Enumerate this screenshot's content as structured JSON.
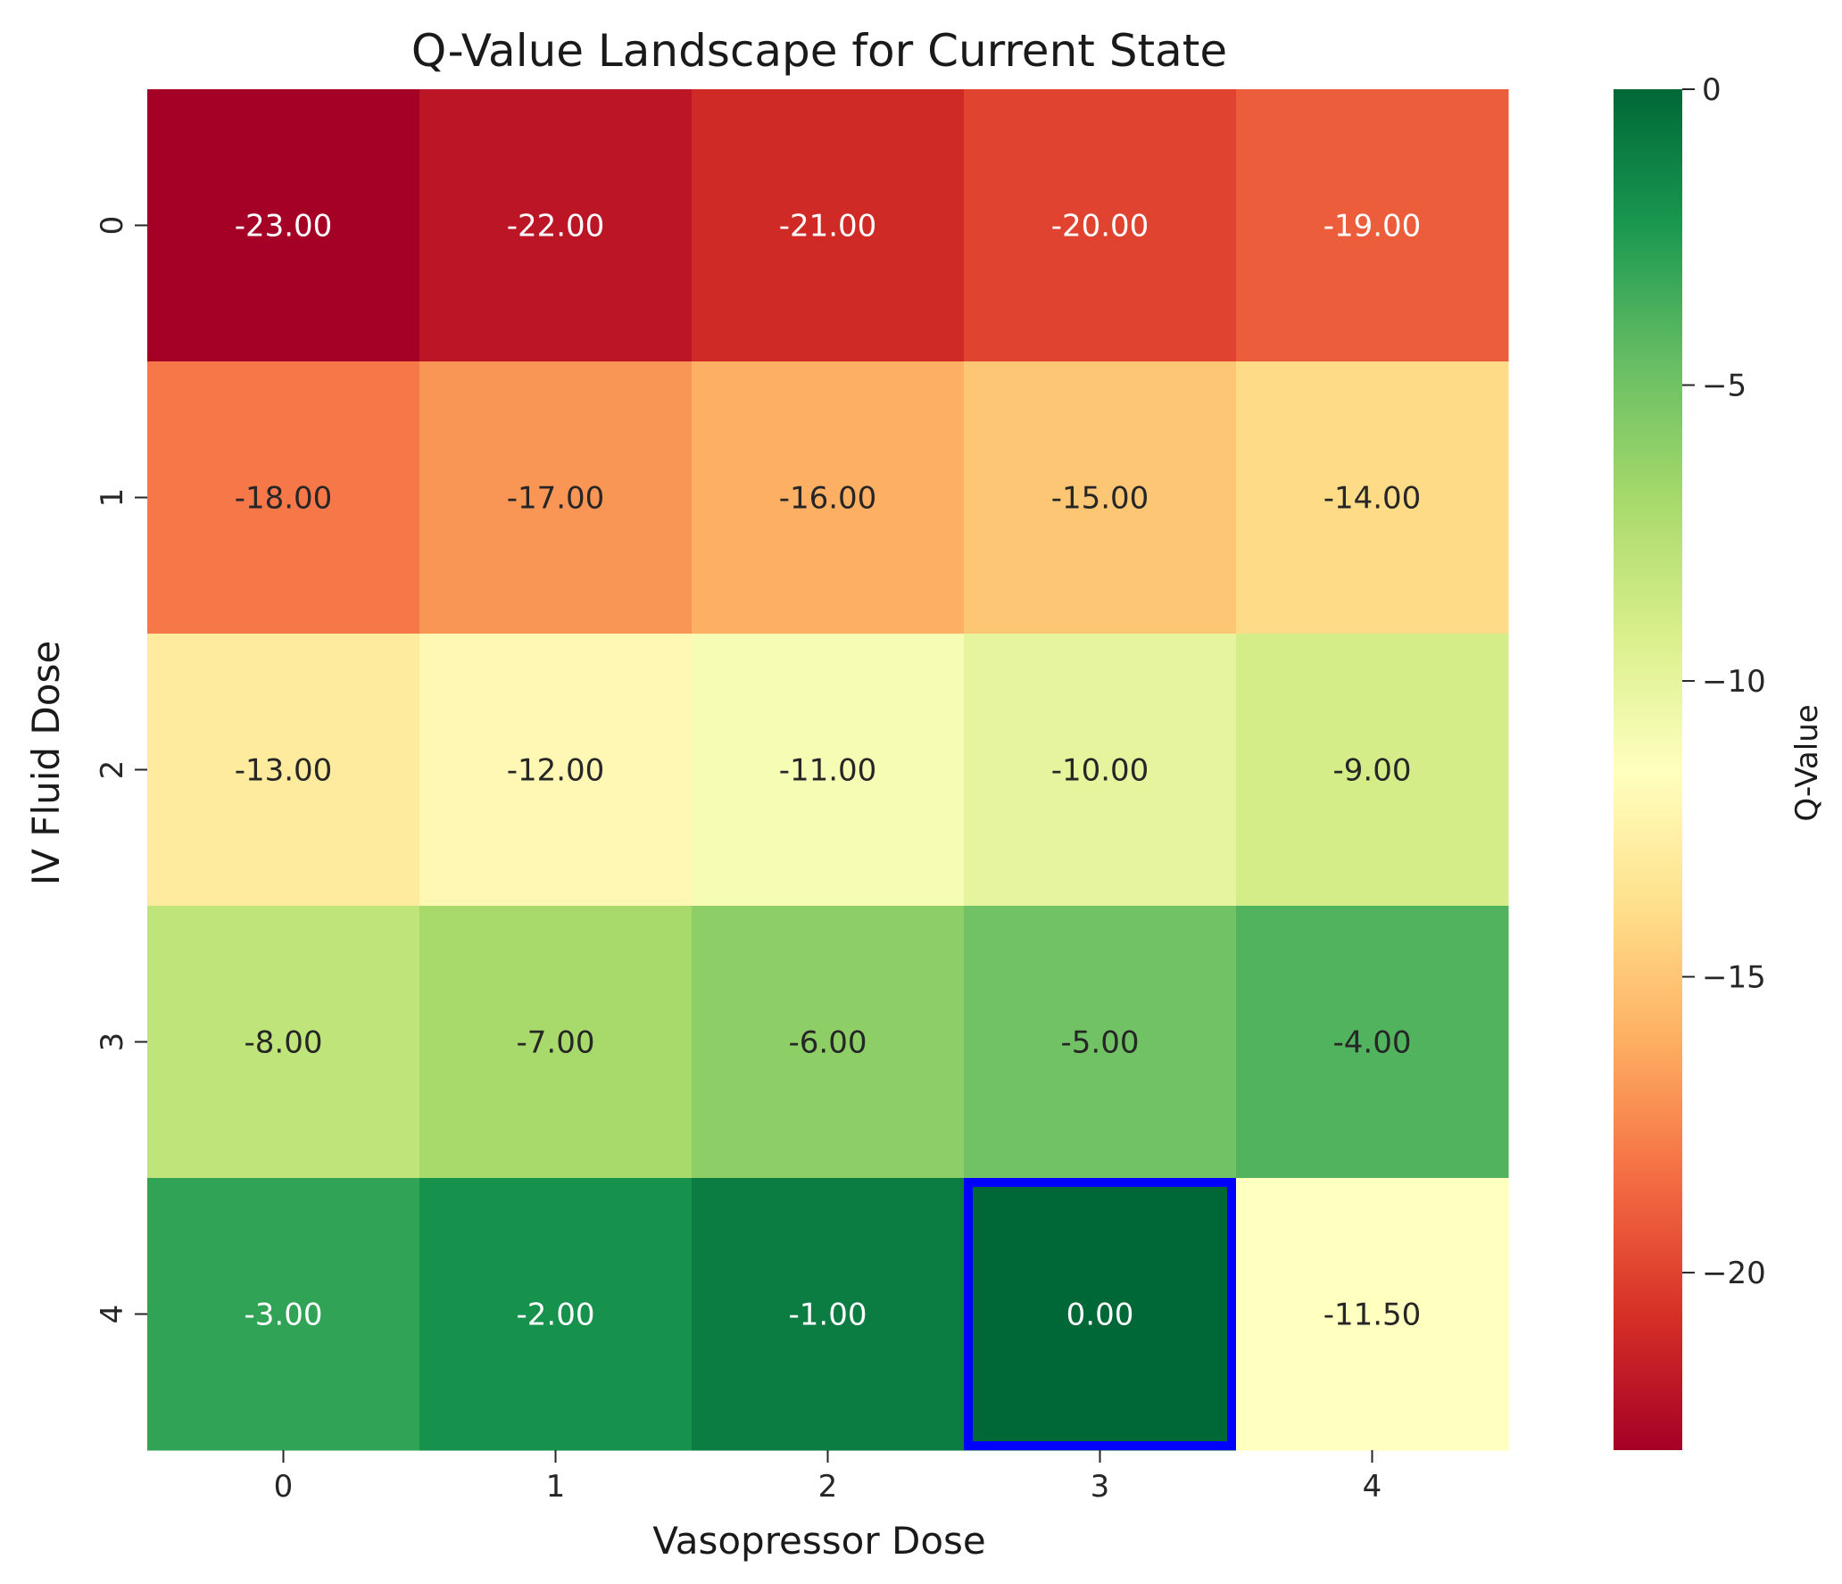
{
  "chart_data": {
    "type": "heatmap",
    "title": "Q-Value Landscape for Current State",
    "xlabel": "Vasopressor Dose",
    "ylabel": "IV Fluid Dose",
    "x_categories": [
      "0",
      "1",
      "2",
      "3",
      "4"
    ],
    "y_categories": [
      "0",
      "1",
      "2",
      "3",
      "4"
    ],
    "values": [
      [
        -23.0,
        -22.0,
        -21.0,
        -20.0,
        -19.0
      ],
      [
        -18.0,
        -17.0,
        -16.0,
        -15.0,
        -14.0
      ],
      [
        -13.0,
        -12.0,
        -11.0,
        -10.0,
        -9.0
      ],
      [
        -8.0,
        -7.0,
        -6.0,
        -5.0,
        -4.0
      ],
      [
        -3.0,
        -2.0,
        -1.0,
        0.0,
        -11.5
      ]
    ],
    "value_format": "0.00",
    "value_range": [
      -23,
      0
    ],
    "colormap": "RdYlGn",
    "colorbar": {
      "label": "Q-Value",
      "ticks": [
        0,
        -5,
        -10,
        -15,
        -20
      ],
      "tick_labels": [
        "0",
        "−5",
        "−10",
        "−15",
        "−20"
      ]
    },
    "highlight": {
      "row": 4,
      "col": 3,
      "color": "#0000ff"
    },
    "grid": false
  }
}
